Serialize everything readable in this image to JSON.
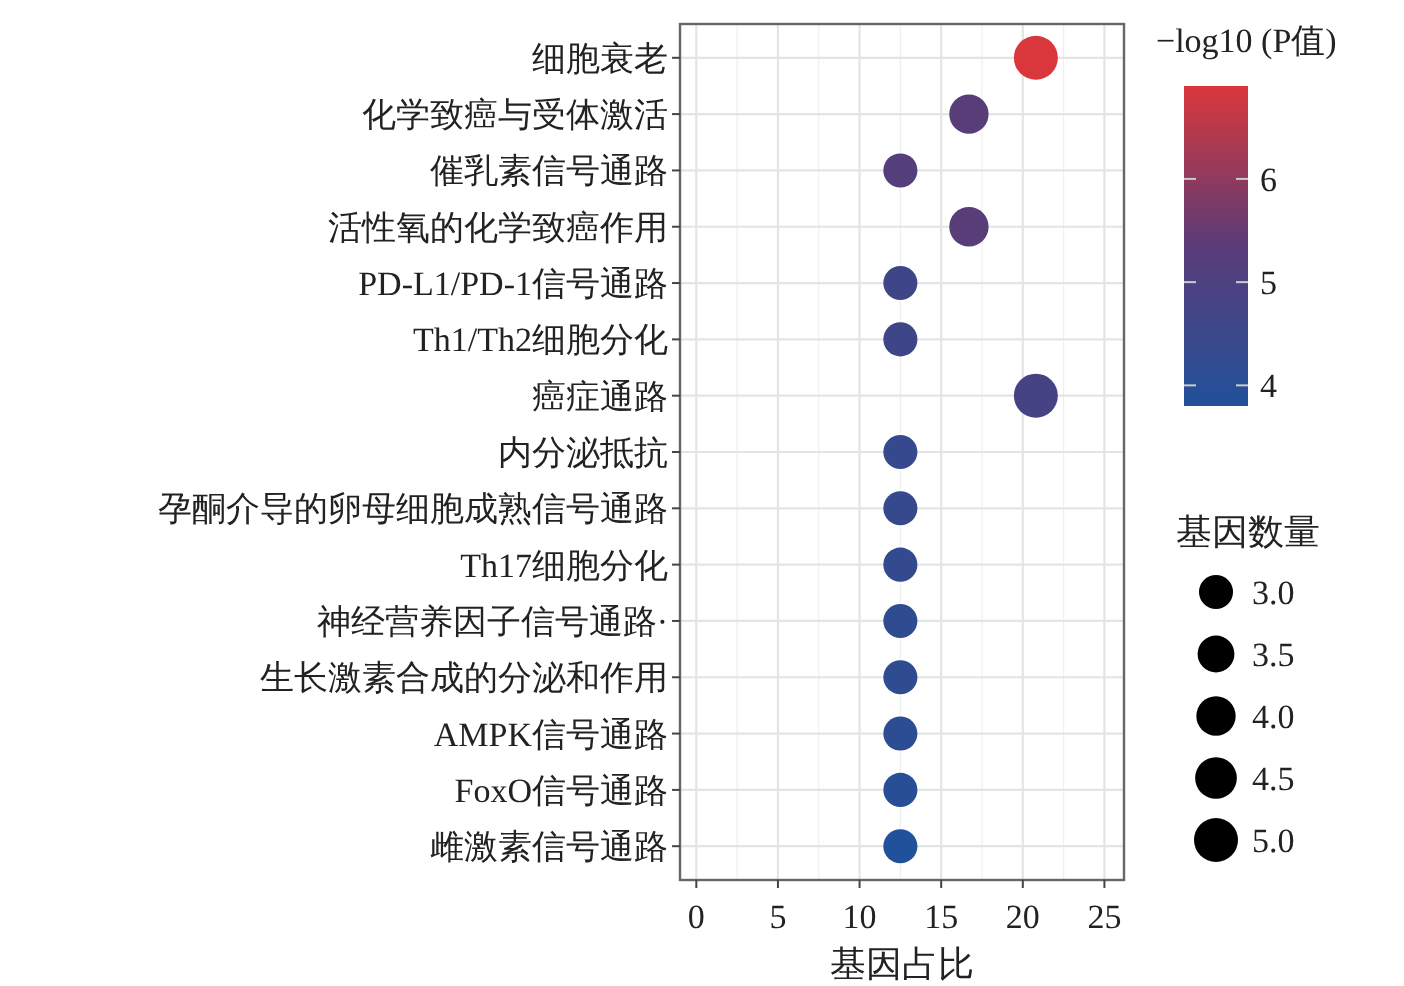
{
  "chart_data": {
    "type": "bubble",
    "orientation": "horizontal",
    "xlabel": "基因占比",
    "clabel": "−log10 (P值)",
    "legend_title": "基因数量",
    "categories": [
      "细胞衰老",
      "化学致癌与受体激活",
      "催乳素信号通路",
      "活性氧的化学致癌作用",
      "PD-L1/PD-1信号通路",
      "Th1/Th2细胞分化",
      "癌症通路",
      "内分泌抵抗",
      "孕酮介导的卵母细胞成熟信号通路",
      "Th17细胞分化",
      "神经营养因子信号通路·",
      "生长激素合成的分泌和作用",
      "AMPK信号通路",
      "FoxO信号通路",
      "雌激素信号通路"
    ],
    "values": [
      20.8,
      16.7,
      12.5,
      16.7,
      12.5,
      12.5,
      20.8,
      12.5,
      12.5,
      12.5,
      12.5,
      12.5,
      12.5,
      12.5,
      12.5
    ],
    "sizes": [
      5,
      4,
      3,
      4,
      3,
      3,
      5,
      3,
      3,
      3,
      3,
      3,
      3,
      3,
      3
    ],
    "cvalues": [
      6.9,
      5.3,
      5.2,
      5.3,
      4.6,
      4.6,
      4.8,
      4.4,
      4.4,
      4.3,
      4.2,
      4.2,
      4.1,
      4.0,
      3.8
    ],
    "clim": [
      3.8,
      6.9
    ],
    "cticks": [
      4,
      5,
      6
    ],
    "size_legend": [
      {
        "value": 3,
        "label": "3.0"
      },
      {
        "value": 3.5,
        "label": "3.5"
      },
      {
        "value": 4,
        "label": "4.0"
      },
      {
        "value": 4.5,
        "label": "4.5"
      },
      {
        "value": 5,
        "label": "5.0"
      }
    ],
    "xlim": [
      -1,
      26.2
    ],
    "xticks": [
      0,
      5,
      10,
      15,
      20,
      25
    ],
    "grid": true
  }
}
